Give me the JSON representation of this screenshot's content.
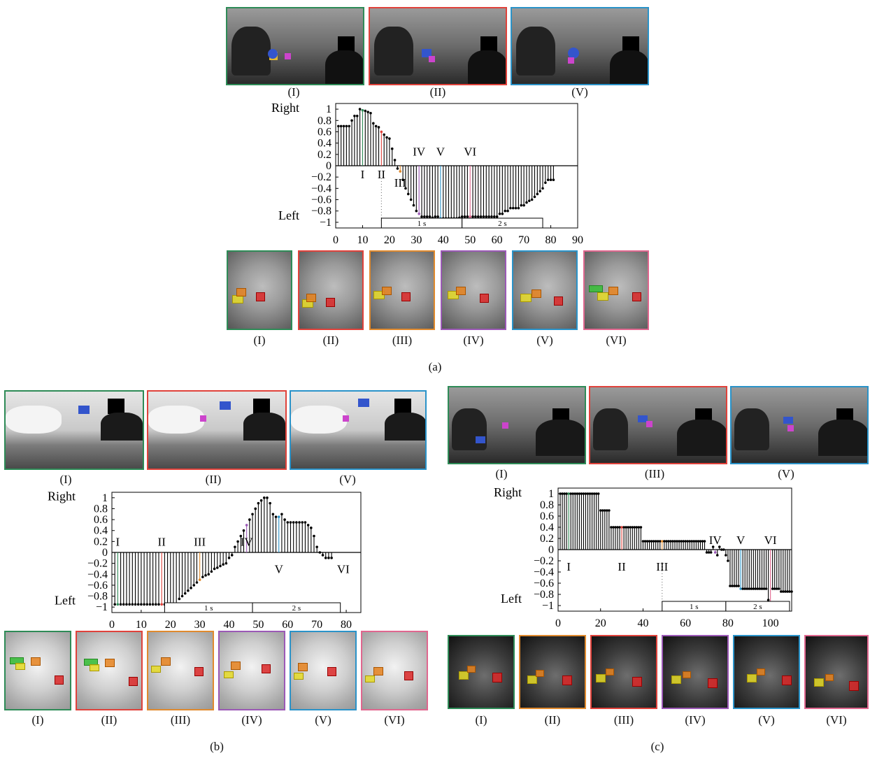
{
  "colors": {
    "I": "#2e8b57",
    "II": "#e0423b",
    "III": "#e08a2e",
    "IV": "#9b59b6",
    "V": "#2a93c9",
    "VI": "#e0678f"
  },
  "panel_labels": {
    "a": "(a)",
    "b": "(b)",
    "c": "(c)"
  },
  "caption_sets": {
    "a_top": [
      "(I)",
      "(II)",
      "(V)"
    ],
    "a_bottom": [
      "(I)",
      "(II)",
      "(III)",
      "(IV)",
      "(V)",
      "(VI)"
    ],
    "b_top": [
      "(I)",
      "(II)",
      "(V)"
    ],
    "b_bottom": [
      "(I)",
      "(II)",
      "(III)",
      "(IV)",
      "(V)",
      "(VI)"
    ],
    "c_top": [
      "(I)",
      "(III)",
      "(V)"
    ],
    "c_bottom": [
      "(I)",
      "(II)",
      "(III)",
      "(IV)",
      "(V)",
      "(VI)"
    ]
  },
  "chart_data": [
    {
      "id": "a",
      "type": "stem",
      "ylabel_top": "Right",
      "ylabel_bottom": "Left",
      "xlim": [
        0,
        90
      ],
      "ylim": [
        -1.1,
        1.1
      ],
      "xticks": [
        0,
        10,
        20,
        30,
        40,
        50,
        60,
        70,
        80,
        90
      ],
      "yticks": [
        "1",
        "0.8",
        "0.6",
        "0.4",
        "0.2",
        "0",
        "−0.2",
        "−0.4",
        "−0.6",
        "−0.8",
        "−1"
      ],
      "values": [
        0.7,
        0.7,
        0.7,
        0.7,
        0.7,
        0.8,
        0.88,
        0.88,
        1,
        0.98,
        0.97,
        0.95,
        0.93,
        0.75,
        0.7,
        0.68,
        0.6,
        0.55,
        0.5,
        0.48,
        0.3,
        0.1,
        -0.05,
        -0.1,
        -0.25,
        -0.4,
        -0.5,
        -0.6,
        -0.7,
        -0.8,
        -0.85,
        -0.9,
        -0.9,
        -0.9,
        -0.9,
        -0.92,
        -0.9,
        -0.9,
        -0.93,
        -0.93,
        -0.93,
        -0.93,
        -0.93,
        -0.93,
        -0.93,
        -0.92,
        -0.9,
        -0.9,
        -0.9,
        -0.9,
        -0.9,
        -0.9,
        -0.9,
        -0.9,
        -0.9,
        -0.9,
        -0.9,
        -0.9,
        -0.9,
        -0.9,
        -0.85,
        -0.85,
        -0.8,
        -0.8,
        -0.75,
        -0.75,
        -0.75,
        -0.75,
        -0.7,
        -0.7,
        -0.65,
        -0.62,
        -0.6,
        -0.55,
        -0.5,
        -0.45,
        -0.4,
        -0.3,
        -0.25,
        -0.25,
        -0.25
      ],
      "events": [
        {
          "label": "I",
          "x": 10,
          "label_y": -0.05,
          "key": "I"
        },
        {
          "label": "II",
          "x": 17,
          "label_y": -0.05,
          "key": "II",
          "dotted": true
        },
        {
          "label": "III",
          "x": 24,
          "label_y": -0.2,
          "key": "III"
        },
        {
          "label": "IV",
          "x": 31,
          "label_y": 0.18,
          "key": "IV"
        },
        {
          "label": "V",
          "x": 39,
          "label_y": 0.18,
          "key": "V"
        },
        {
          "label": "VI",
          "x": 50,
          "label_y": 0.18,
          "key": "VI"
        }
      ],
      "scale_bars": [
        {
          "label": "1 s",
          "x0": 17,
          "x1": 47
        },
        {
          "label": "2 s",
          "x0": 47,
          "x1": 77
        }
      ]
    },
    {
      "id": "b",
      "type": "stem",
      "ylabel_top": "Right",
      "ylabel_bottom": "Left",
      "xlim": [
        0,
        85
      ],
      "ylim": [
        -1.1,
        1.1
      ],
      "xticks": [
        0,
        10,
        20,
        30,
        40,
        50,
        60,
        70,
        80
      ],
      "yticks": [
        "1",
        "0.8",
        "0.6",
        "0.4",
        "0.2",
        "0",
        "−0.2",
        "−0.4",
        "−0.6",
        "−0.8",
        "−1"
      ],
      "values": [
        -0.95,
        -0.95,
        -0.95,
        -0.95,
        -0.95,
        -0.95,
        -0.95,
        -0.95,
        -0.95,
        -0.95,
        -0.95,
        -0.95,
        -0.95,
        -0.95,
        -0.95,
        -0.95,
        -0.95,
        -0.95,
        -0.95,
        -0.95,
        -1,
        -0.98,
        -0.85,
        -0.8,
        -0.75,
        -0.7,
        -0.65,
        -0.6,
        -0.55,
        -0.5,
        -0.45,
        -0.42,
        -0.4,
        -0.35,
        -0.3,
        -0.28,
        -0.25,
        -0.22,
        -0.2,
        -0.1,
        -0.05,
        0.1,
        0.2,
        0.3,
        0.4,
        0.5,
        0.6,
        0.7,
        0.8,
        0.9,
        0.95,
        1,
        1,
        0.9,
        0.7,
        0.65,
        0.65,
        0.7,
        0.6,
        0.55,
        0.55,
        0.55,
        0.55,
        0.55,
        0.55,
        0.55,
        0.5,
        0.45,
        0.3,
        0.1,
        0,
        -0.05,
        -0.1,
        -0.1,
        -0.1
      ],
      "events": [
        {
          "label": "I",
          "x": 2,
          "label_y": 0.12,
          "key": "I"
        },
        {
          "label": "II",
          "x": 17,
          "label_y": 0.12,
          "key": "II"
        },
        {
          "label": "III",
          "x": 30,
          "label_y": 0.12,
          "key": "III"
        },
        {
          "label": "IV",
          "x": 46,
          "label_y": 0.12,
          "key": "IV"
        },
        {
          "label": "V",
          "x": 57,
          "label_y": -0.2,
          "key": "V"
        },
        {
          "label": "VI",
          "x": 79,
          "label_y": -0.2,
          "key": "VI"
        }
      ],
      "scale_bars": [
        {
          "label": "1 s",
          "x0": 18,
          "x1": 48
        },
        {
          "label": "2 s",
          "x0": 48,
          "x1": 78
        }
      ]
    },
    {
      "id": "c",
      "type": "stem",
      "ylabel_top": "Right",
      "ylabel_bottom": "Left",
      "xlim": [
        0,
        110
      ],
      "ylim": [
        -1.1,
        1.1
      ],
      "xticks": [
        0,
        20,
        40,
        60,
        80,
        100
      ],
      "yticks": [
        "1",
        "0.8",
        "0.6",
        "0.4",
        "0.2",
        "0",
        "−0.2",
        "−0.4",
        "−0.6",
        "−0.8",
        "−1"
      ],
      "values": [
        1,
        1,
        1,
        1,
        1,
        1,
        1,
        1,
        1,
        1,
        1,
        1,
        1,
        1,
        1,
        1,
        1,
        1,
        1,
        0.7,
        0.7,
        0.7,
        0.7,
        0.7,
        0.4,
        0.4,
        0.4,
        0.4,
        0.4,
        0.4,
        0.4,
        0.4,
        0.4,
        0.4,
        0.4,
        0.4,
        0.4,
        0.4,
        0.4,
        0.15,
        0.15,
        0.15,
        0.15,
        0.15,
        0.15,
        0.15,
        0.15,
        0.15,
        0.15,
        0.15,
        0.15,
        0.15,
        0.15,
        0.15,
        0.15,
        0.15,
        0.15,
        0.15,
        0.15,
        0.15,
        0.15,
        0.15,
        0.15,
        0.15,
        0.15,
        0.15,
        0.15,
        0.15,
        0.15,
        -0.05,
        -0.05,
        -0.05,
        0.05,
        -0.05,
        -0.1,
        0.05,
        0,
        0,
        -0.1,
        -0.2,
        -0.65,
        -0.65,
        -0.65,
        -0.65,
        -0.65,
        -0.7,
        -0.7,
        -0.7,
        -0.7,
        -0.7,
        -0.7,
        -0.7,
        -0.7,
        -0.7,
        -0.7,
        -0.7,
        -0.7,
        -0.7,
        -0.9,
        -1,
        -0.7,
        -0.7,
        -0.7,
        -0.7,
        -0.75,
        -0.75,
        -0.75,
        -0.75,
        -0.75,
        -0.75
      ],
      "events": [
        {
          "label": "I",
          "x": 5,
          "label_y": -0.2,
          "key": "I"
        },
        {
          "label": "II",
          "x": 30,
          "label_y": -0.2,
          "key": "II"
        },
        {
          "label": "III",
          "x": 49,
          "label_y": -0.2,
          "key": "III",
          "dotted": true
        },
        {
          "label": "IV",
          "x": 74,
          "label_y": 0.1,
          "key": "IV"
        },
        {
          "label": "V",
          "x": 86,
          "label_y": 0.1,
          "key": "V"
        },
        {
          "label": "VI",
          "x": 100,
          "label_y": 0.1,
          "key": "VI"
        }
      ],
      "scale_bars": [
        {
          "label": "1 s",
          "x0": 49,
          "x1": 79
        },
        {
          "label": "2 s",
          "x0": 79,
          "x1": 109
        }
      ]
    }
  ]
}
